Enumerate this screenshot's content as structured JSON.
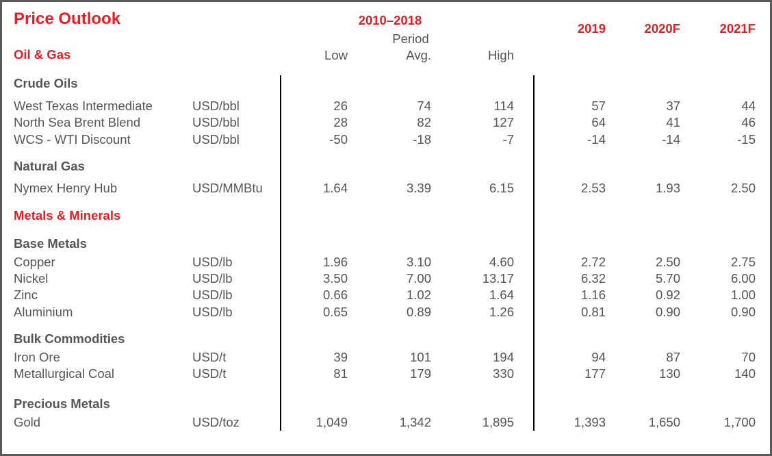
{
  "title": "Price Outlook",
  "header": {
    "period_range": "2010–2018",
    "period_label": "Period",
    "low": "Low",
    "avg": "Avg.",
    "high": "High",
    "y2019": "2019",
    "y2020": "2020F",
    "y2021": "2021F"
  },
  "rows": [
    {
      "type": "category",
      "label": "Oil & Gas"
    },
    {
      "type": "group",
      "label": "Crude Oils"
    },
    {
      "type": "item",
      "label": "West Texas Intermediate",
      "unit": "USD/bbl",
      "values": [
        "26",
        "74",
        "114",
        "57",
        "37",
        "44"
      ]
    },
    {
      "type": "item",
      "label": "North Sea Brent Blend",
      "unit": "USD/bbl",
      "values": [
        "28",
        "82",
        "127",
        "64",
        "41",
        "46"
      ]
    },
    {
      "type": "item",
      "label": "WCS - WTI Discount",
      "unit": "USD/bbl",
      "values": [
        "-50",
        "-18",
        "-7",
        "-14",
        "-14",
        "-15"
      ]
    },
    {
      "type": "group",
      "label": "Natural Gas"
    },
    {
      "type": "item",
      "label": "Nymex Henry Hub",
      "unit": "USD/MMBtu",
      "values": [
        "1.64",
        "3.39",
        "6.15",
        "2.53",
        "1.93",
        "2.50"
      ]
    },
    {
      "type": "category",
      "label": "Metals & Minerals"
    },
    {
      "type": "group",
      "label": "Base Metals"
    },
    {
      "type": "item",
      "label": "Copper",
      "unit": "USD/lb",
      "values": [
        "1.96",
        "3.10",
        "4.60",
        "2.72",
        "2.50",
        "2.75"
      ]
    },
    {
      "type": "item",
      "label": "Nickel",
      "unit": "USD/lb",
      "values": [
        "3.50",
        "7.00",
        "13.17",
        "6.32",
        "5.70",
        "6.00"
      ]
    },
    {
      "type": "item",
      "label": "Zinc",
      "unit": "USD/lb",
      "values": [
        "0.66",
        "1.02",
        "1.64",
        "1.16",
        "0.92",
        "1.00"
      ]
    },
    {
      "type": "item",
      "label": "Aluminium",
      "unit": "USD/lb",
      "values": [
        "0.65",
        "0.89",
        "1.26",
        "0.81",
        "0.90",
        "0.90"
      ]
    },
    {
      "type": "group",
      "label": "Bulk Commodities"
    },
    {
      "type": "item",
      "label": "Iron Ore",
      "unit": "USD/t",
      "values": [
        "39",
        "101",
        "194",
        "94",
        "87",
        "70"
      ]
    },
    {
      "type": "item",
      "label": "Metallurgical Coal",
      "unit": "USD/t",
      "values": [
        "81",
        "179",
        "330",
        "177",
        "130",
        "140"
      ]
    },
    {
      "type": "group",
      "label": "Precious Metals"
    },
    {
      "type": "item",
      "label": "Gold",
      "unit": "USD/toz",
      "values": [
        "1,049",
        "1,342",
        "1,895",
        "1,393",
        "1,650",
        "1,700"
      ]
    }
  ],
  "colors": {
    "accent": "#e31e24",
    "text": "#555555"
  }
}
